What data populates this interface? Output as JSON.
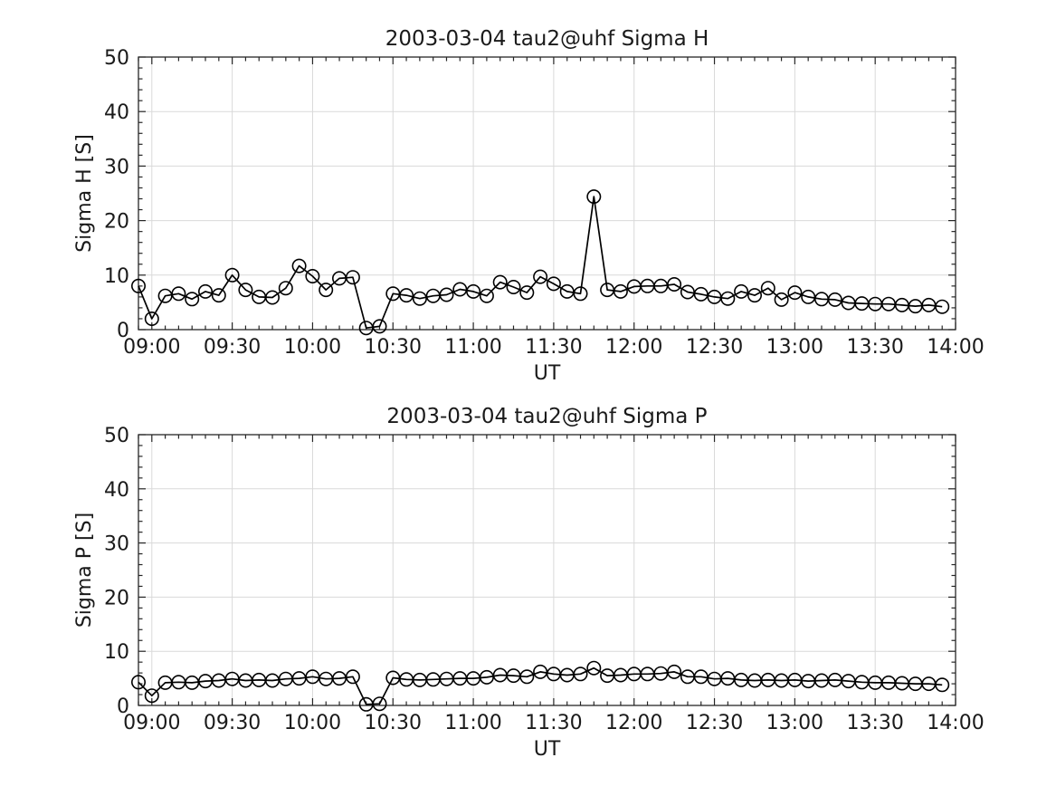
{
  "page": {
    "background": "#ffffff"
  },
  "style": {
    "axis_color": "#262626",
    "text_color": "#1a1a1a",
    "grid_color": "#d9d9d9",
    "line_color": "#000000"
  },
  "chart_data": [
    {
      "type": "line",
      "title": "2003-03-04  tau2@uhf Sigma H",
      "xlabel": "UT",
      "ylabel": "Sigma H [S]",
      "ylim": [
        0,
        50
      ],
      "yticks": [
        0,
        10,
        20,
        30,
        40,
        50
      ],
      "y_minor_step": 2,
      "xlim": [
        "08:55",
        "14:00"
      ],
      "xticks": [
        "09:00",
        "09:30",
        "10:00",
        "10:30",
        "11:00",
        "11:30",
        "12:00",
        "12:30",
        "13:00",
        "13:30",
        "14:00"
      ],
      "x_minor_step_minutes": 5,
      "grid": true,
      "legend_position": "none",
      "marker": "open-circle",
      "x": [
        "08:55",
        "09:00",
        "09:05",
        "09:10",
        "09:15",
        "09:20",
        "09:25",
        "09:30",
        "09:35",
        "09:40",
        "09:45",
        "09:50",
        "09:55",
        "10:00",
        "10:05",
        "10:10",
        "10:15",
        "10:20",
        "10:25",
        "10:30",
        "10:35",
        "10:40",
        "10:45",
        "10:50",
        "10:55",
        "11:00",
        "11:05",
        "11:10",
        "11:15",
        "11:20",
        "11:25",
        "11:30",
        "11:35",
        "11:40",
        "11:45",
        "11:50",
        "11:55",
        "12:00",
        "12:05",
        "12:10",
        "12:15",
        "12:20",
        "12:25",
        "12:30",
        "12:35",
        "12:40",
        "12:45",
        "12:50",
        "12:55",
        "13:00",
        "13:05",
        "13:10",
        "13:15",
        "13:20",
        "13:25",
        "13:30",
        "13:35",
        "13:40",
        "13:45",
        "13:50",
        "13:55"
      ],
      "y": [
        8.0,
        2.0,
        6.2,
        6.6,
        5.6,
        7.0,
        6.3,
        10.0,
        7.3,
        6.0,
        5.9,
        7.6,
        11.7,
        9.8,
        7.3,
        9.4,
        9.6,
        0.3,
        0.6,
        6.6,
        6.3,
        5.7,
        6.2,
        6.4,
        7.4,
        7.0,
        6.2,
        8.7,
        7.8,
        6.8,
        9.7,
        8.4,
        7.0,
        6.6,
        24.4,
        7.3,
        7.0,
        7.9,
        8.0,
        8.0,
        8.3,
        6.9,
        6.5,
        6.0,
        5.7,
        7.0,
        6.3,
        7.6,
        5.5,
        6.8,
        6.0,
        5.6,
        5.5,
        4.9,
        4.8,
        4.7,
        4.7,
        4.5,
        4.3,
        4.5,
        4.2
      ]
    },
    {
      "type": "line",
      "title": "2003-03-04  tau2@uhf Sigma P",
      "xlabel": "UT",
      "ylabel": "Sigma P [S]",
      "ylim": [
        0,
        50
      ],
      "yticks": [
        0,
        10,
        20,
        30,
        40,
        50
      ],
      "y_minor_step": 2,
      "xlim": [
        "08:55",
        "14:00"
      ],
      "xticks": [
        "09:00",
        "09:30",
        "10:00",
        "10:30",
        "11:00",
        "11:30",
        "12:00",
        "12:30",
        "13:00",
        "13:30",
        "14:00"
      ],
      "x_minor_step_minutes": 5,
      "grid": true,
      "legend_position": "none",
      "marker": "open-circle",
      "x": [
        "08:55",
        "09:00",
        "09:05",
        "09:10",
        "09:15",
        "09:20",
        "09:25",
        "09:30",
        "09:35",
        "09:40",
        "09:45",
        "09:50",
        "09:55",
        "10:00",
        "10:05",
        "10:10",
        "10:15",
        "10:20",
        "10:25",
        "10:30",
        "10:35",
        "10:40",
        "10:45",
        "10:50",
        "10:55",
        "11:00",
        "11:05",
        "11:10",
        "11:15",
        "11:20",
        "11:25",
        "11:30",
        "11:35",
        "11:40",
        "11:45",
        "11:50",
        "11:55",
        "12:00",
        "12:05",
        "12:10",
        "12:15",
        "12:20",
        "12:25",
        "12:30",
        "12:35",
        "12:40",
        "12:45",
        "12:50",
        "12:55",
        "13:00",
        "13:05",
        "13:10",
        "13:15",
        "13:20",
        "13:25",
        "13:30",
        "13:35",
        "13:40",
        "13:45",
        "13:50",
        "13:55"
      ],
      "y": [
        4.3,
        1.8,
        4.2,
        4.3,
        4.2,
        4.5,
        4.6,
        4.9,
        4.6,
        4.7,
        4.6,
        4.9,
        5.0,
        5.3,
        4.9,
        5.0,
        5.3,
        0.2,
        0.3,
        5.1,
        4.8,
        4.7,
        4.8,
        4.9,
        5.0,
        5.0,
        5.2,
        5.6,
        5.5,
        5.3,
        6.2,
        5.8,
        5.6,
        5.8,
        6.9,
        5.5,
        5.6,
        5.8,
        5.8,
        5.9,
        6.2,
        5.3,
        5.3,
        4.9,
        5.0,
        4.7,
        4.6,
        4.7,
        4.6,
        4.7,
        4.5,
        4.6,
        4.7,
        4.5,
        4.3,
        4.2,
        4.2,
        4.1,
        4.0,
        4.0,
        3.8
      ]
    }
  ]
}
